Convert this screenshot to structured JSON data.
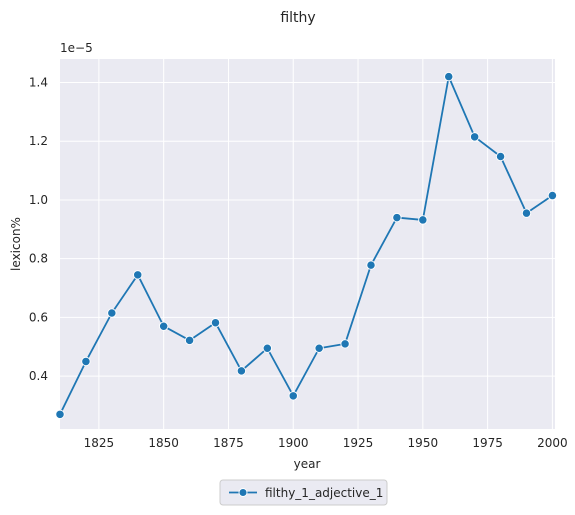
{
  "chart_data": {
    "type": "line",
    "title": "filthy",
    "xlabel": "year",
    "ylabel": "lexicon%",
    "y_multiplier_label": "1e−5",
    "xlim": [
      1810,
      2001
    ],
    "ylim": [
      0.22,
      1.48
    ],
    "x_ticks": [
      1825,
      1850,
      1875,
      1900,
      1925,
      1950,
      1975,
      2000
    ],
    "y_ticks": [
      0.4,
      0.6,
      0.8,
      1.0,
      1.2,
      1.4
    ],
    "y_tick_labels": [
      "0.4",
      "0.6",
      "0.8",
      "1.0",
      "1.2",
      "1.4"
    ],
    "grid": true,
    "legend_position": "bottom-center",
    "x": [
      1810,
      1820,
      1830,
      1840,
      1850,
      1860,
      1870,
      1880,
      1890,
      1900,
      1910,
      1920,
      1930,
      1940,
      1950,
      1960,
      1970,
      1980,
      1990,
      2000
    ],
    "series": [
      {
        "name": "filthy_1_adjective_1",
        "color": "#1f77b4",
        "values": [
          0.27,
          0.45,
          0.615,
          0.745,
          0.57,
          0.522,
          0.582,
          0.418,
          0.495,
          0.333,
          0.495,
          0.51,
          0.778,
          0.94,
          0.932,
          1.42,
          1.215,
          1.148,
          0.955,
          1.015
        ]
      }
    ]
  },
  "colors": {
    "plot_background": "#eaeaf2",
    "grid": "#ffffff"
  }
}
